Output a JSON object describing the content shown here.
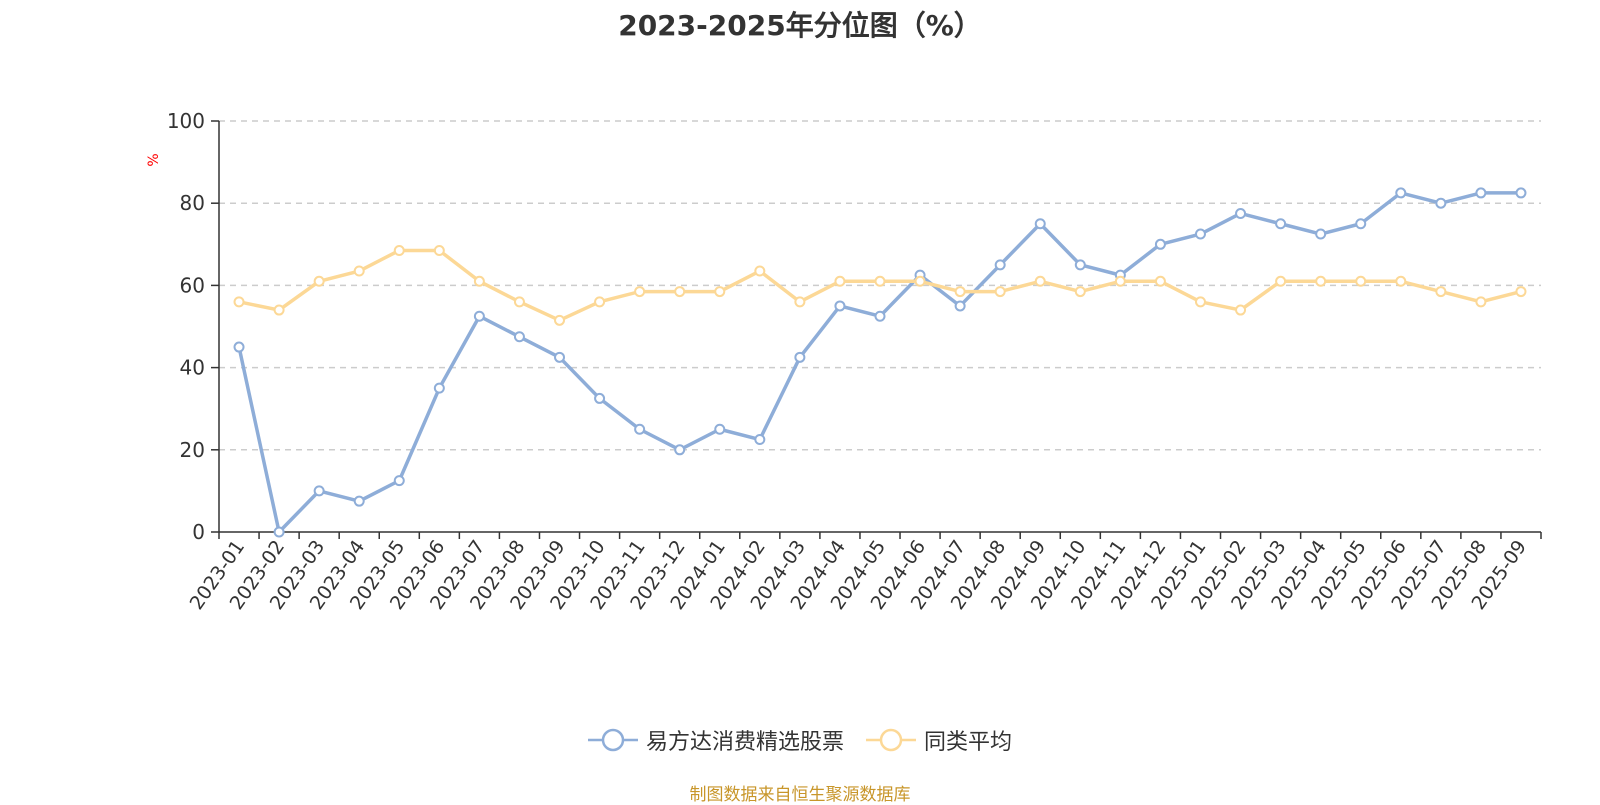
{
  "chart_data": {
    "type": "line",
    "title": "2023-2025年分位图（%）",
    "ylabel": "%",
    "ylim": [
      0,
      100
    ],
    "yticks": [
      0,
      20,
      40,
      60,
      80,
      100
    ],
    "grid": "horizontal dashed",
    "legend_position": "bottom",
    "categories": [
      "2023-01",
      "2023-02",
      "2023-03",
      "2023-04",
      "2023-05",
      "2023-06",
      "2023-07",
      "2023-08",
      "2023-09",
      "2023-10",
      "2023-11",
      "2023-12",
      "2024-01",
      "2024-02",
      "2024-03",
      "2024-04",
      "2024-05",
      "2024-06",
      "2024-07",
      "2024-08",
      "2024-09",
      "2024-10",
      "2024-11",
      "2024-12",
      "2025-01",
      "2025-02",
      "2025-03",
      "2025-04",
      "2025-05",
      "2025-06",
      "2025-07",
      "2025-08",
      "2025-09"
    ],
    "series": [
      {
        "name": "易方达消费精选股票",
        "color": "#8eadd8",
        "values": [
          45,
          0,
          10,
          7.5,
          12.5,
          35,
          52.5,
          47.5,
          42.5,
          32.5,
          25,
          20,
          25,
          22.5,
          42.5,
          55,
          52.5,
          62.5,
          55,
          65,
          75,
          65,
          62.5,
          70,
          72.5,
          77.5,
          75,
          72.5,
          75,
          82.5,
          80,
          82.5,
          82.5
        ]
      },
      {
        "name": "同类平均",
        "color": "#fcd896",
        "values": [
          56,
          54,
          61,
          63.5,
          68.5,
          68.5,
          61,
          56,
          51.5,
          56,
          58.5,
          58.5,
          58.5,
          63.5,
          56,
          61,
          61,
          61,
          58.5,
          58.5,
          61,
          58.5,
          61,
          61,
          56,
          54,
          61,
          61,
          61,
          61,
          58.5,
          56,
          58.5
        ]
      }
    ]
  },
  "footer": {
    "text": "制图数据来自恒生聚源数据库",
    "color": "#c8962a"
  },
  "ylabel_color": "#ff0000"
}
